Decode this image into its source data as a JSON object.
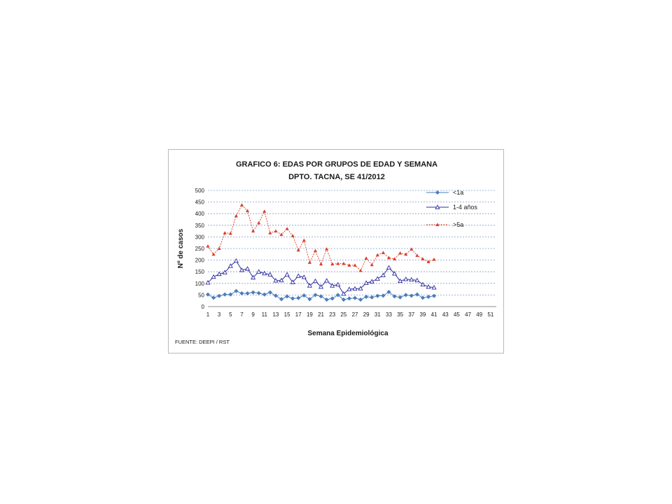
{
  "chart_data": {
    "type": "line",
    "title": "GRAFICO 6: EDAS POR GRUPOS DE EDAD Y SEMANA",
    "subtitle": "DPTO. TACNA, SE  41/2012",
    "xlabel": "Semana Epidemiológica",
    "ylabel": "Nº de casos",
    "source": "FUENTE: DEEPI  / RST",
    "ylim": [
      0,
      500
    ],
    "yticks": [
      0,
      50,
      100,
      150,
      200,
      250,
      300,
      350,
      400,
      450,
      500
    ],
    "xlim": [
      1,
      52
    ],
    "xticks": [
      1,
      3,
      5,
      7,
      9,
      11,
      13,
      15,
      17,
      19,
      21,
      23,
      25,
      27,
      29,
      31,
      33,
      35,
      37,
      39,
      41,
      43,
      45,
      47,
      49,
      51
    ],
    "grid": "horizontal-dashed",
    "legend_position": "top-right",
    "series": [
      {
        "name": "<1a",
        "color": "#4a7ebb",
        "marker": "diamond",
        "line": "solid",
        "values": [
          52,
          38,
          46,
          52,
          52,
          67,
          57,
          57,
          61,
          58,
          52,
          61,
          47,
          32,
          44,
          35,
          37,
          48,
          32,
          50,
          44,
          30,
          35,
          50,
          30,
          35,
          37,
          30,
          42,
          40,
          46,
          47,
          63,
          44,
          40,
          50,
          47,
          52,
          38,
          42,
          46
        ]
      },
      {
        "name": "1-4 años",
        "color": "#2e2ea0",
        "marker": "triangle-open",
        "line": "solid",
        "values": [
          103,
          128,
          140,
          147,
          175,
          197,
          157,
          163,
          125,
          150,
          143,
          138,
          112,
          113,
          138,
          105,
          132,
          127,
          90,
          110,
          85,
          112,
          90,
          95,
          55,
          75,
          77,
          78,
          102,
          108,
          120,
          135,
          168,
          142,
          110,
          118,
          116,
          113,
          95,
          85,
          82
        ]
      },
      {
        "name": ">5a",
        "color": "#d9402b",
        "marker": "triangle",
        "line": "dashed",
        "values": [
          260,
          225,
          250,
          317,
          315,
          390,
          437,
          412,
          325,
          360,
          410,
          317,
          325,
          310,
          335,
          305,
          243,
          285,
          190,
          240,
          183,
          248,
          183,
          185,
          185,
          178,
          178,
          155,
          208,
          180,
          222,
          232,
          210,
          205,
          230,
          225,
          247,
          220,
          205,
          193,
          203
        ]
      }
    ]
  }
}
